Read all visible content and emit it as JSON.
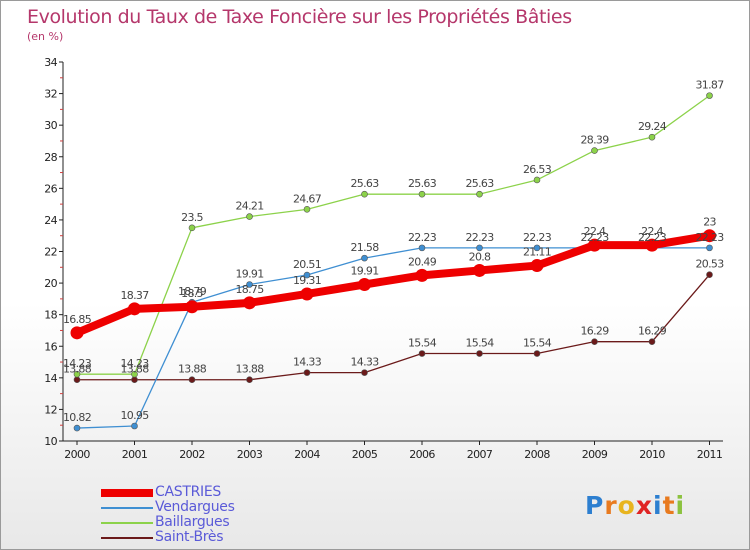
{
  "title": "Evolution du Taux de Taxe Foncière sur les Propriétés Bâties",
  "unit": "(en %)",
  "logo": {
    "text": "Proxiti",
    "colors": [
      "#2d7fd0",
      "#e87a1f",
      "#e8b41f",
      "#e02424",
      "#2d7fd0",
      "#e87a1f",
      "#8cc23f"
    ]
  },
  "chart_data": {
    "type": "line",
    "categories": [
      "2000",
      "2001",
      "2002",
      "2003",
      "2004",
      "2005",
      "2006",
      "2007",
      "2008",
      "2009",
      "2010",
      "2011"
    ],
    "ylim": [
      10,
      34
    ],
    "yticks": [
      10,
      12,
      14,
      16,
      18,
      20,
      22,
      24,
      26,
      28,
      30,
      32,
      34
    ],
    "grid": false,
    "legend_position": "bottom-left",
    "series": [
      {
        "name": "Saint-Brès",
        "color": "#6b1a1a",
        "values": [
          13.88,
          13.88,
          13.88,
          13.88,
          14.33,
          14.33,
          15.54,
          15.54,
          15.54,
          16.29,
          16.29,
          20.53
        ],
        "labels": [
          "13.88",
          "13.88",
          "13.88",
          "13.88",
          "14.33",
          "14.33",
          "15.54",
          "15.54",
          "15.54",
          "16.29",
          "16.29",
          "20.53"
        ]
      },
      {
        "name": "Baillargues",
        "color": "#8cd24a",
        "values": [
          14.23,
          14.23,
          23.5,
          24.21,
          24.67,
          25.63,
          25.63,
          25.63,
          26.53,
          28.39,
          29.24,
          31.87
        ],
        "labels": [
          "14.23",
          "14.23",
          "23.5",
          "24.21",
          "24.67",
          "25.63",
          "25.63",
          "25.63",
          "26.53",
          "28.39",
          "29.24",
          "31.87"
        ]
      },
      {
        "name": "Vendargues",
        "color": "#3f8fd2",
        "values": [
          10.82,
          10.95,
          18.79,
          19.91,
          20.51,
          21.58,
          22.23,
          22.23,
          22.23,
          22.23,
          22.23,
          22.23
        ],
        "labels": [
          "10.82",
          "10.95",
          "18.79",
          "19.91",
          "20.51",
          "21.58",
          "22.23",
          "22.23",
          "22.23",
          "22.23",
          "22.23",
          "22.23"
        ]
      },
      {
        "name": "CASTRIES",
        "color": "#ee0000",
        "values": [
          16.85,
          18.37,
          18.5,
          18.75,
          19.31,
          19.91,
          20.49,
          20.8,
          21.11,
          22.4,
          22.4,
          23
        ],
        "labels": [
          "16.85",
          "18.37",
          "18.5",
          "18.75",
          "19.31",
          "19.91",
          "20.49",
          "20.8",
          "21.11",
          "22.4",
          "22.4",
          "23"
        ]
      }
    ],
    "legend": [
      {
        "name": "CASTRIES",
        "color": "#ee0000"
      },
      {
        "name": "Vendargues",
        "color": "#3f8fd2"
      },
      {
        "name": "Baillargues",
        "color": "#8cd24a"
      },
      {
        "name": "Saint-Brès",
        "color": "#6b1a1a"
      }
    ]
  }
}
